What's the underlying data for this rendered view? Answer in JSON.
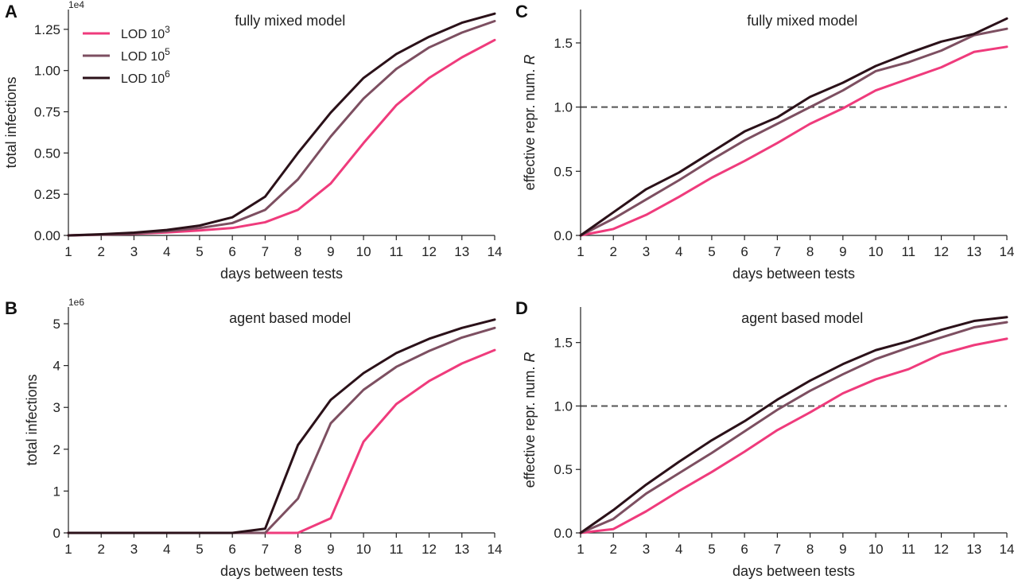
{
  "colors": {
    "lod3": "#ef3b7c",
    "lod5": "#7d4f61",
    "lod6": "#2b1119"
  },
  "legend": [
    {
      "base": "LOD 10",
      "exp": "3",
      "color": "#ef3b7c"
    },
    {
      "base": "LOD 10",
      "exp": "5",
      "color": "#7d4f61"
    },
    {
      "base": "LOD 10",
      "exp": "6",
      "color": "#2b1119"
    }
  ],
  "chart_data": [
    {
      "id": "A",
      "type": "line",
      "letter": "A",
      "title": "fully mixed model",
      "xlabel": "days between tests",
      "ylabel": "total infections",
      "y_multiplier": "1e4",
      "x": [
        1,
        2,
        3,
        4,
        5,
        6,
        7,
        8,
        9,
        10,
        11,
        12,
        13,
        14
      ],
      "xlim": [
        1,
        14
      ],
      "ylim": [
        0,
        1.37
      ],
      "yticks": [
        0,
        0.25,
        0.5,
        0.75,
        1.0,
        1.25
      ],
      "ytick_labels": [
        "0.00",
        "0.25",
        "0.50",
        "0.75",
        "1.00",
        "1.25"
      ],
      "legend_position": "top-left",
      "grid": false,
      "series": [
        {
          "name": "LOD 10^3",
          "values": [
            0,
            0.005,
            0.01,
            0.018,
            0.03,
            0.045,
            0.08,
            0.155,
            0.315,
            0.56,
            0.79,
            0.955,
            1.08,
            1.185
          ]
        },
        {
          "name": "LOD 10^5",
          "values": [
            0,
            0.005,
            0.012,
            0.025,
            0.045,
            0.075,
            0.155,
            0.34,
            0.6,
            0.83,
            1.01,
            1.14,
            1.23,
            1.3
          ]
        },
        {
          "name": "LOD 10^6",
          "values": [
            0,
            0.007,
            0.017,
            0.033,
            0.06,
            0.11,
            0.235,
            0.5,
            0.745,
            0.955,
            1.1,
            1.205,
            1.29,
            1.345
          ]
        }
      ]
    },
    {
      "id": "B",
      "type": "line",
      "letter": "B",
      "title": "agent based model",
      "xlabel": "days between tests",
      "ylabel": "total infections",
      "y_multiplier": "1e6",
      "x": [
        1,
        2,
        3,
        4,
        5,
        6,
        7,
        8,
        9,
        10,
        11,
        12,
        13,
        14
      ],
      "xlim": [
        1,
        14
      ],
      "ylim": [
        0,
        5.4
      ],
      "yticks": [
        0,
        1,
        2,
        3,
        4,
        5
      ],
      "ytick_labels": [
        "0",
        "1",
        "2",
        "3",
        "4",
        "5"
      ],
      "grid": false,
      "series": [
        {
          "name": "LOD 10^3",
          "values": [
            0,
            0,
            0,
            0,
            0,
            0,
            0,
            0,
            0.35,
            2.18,
            3.08,
            3.63,
            4.05,
            4.37
          ]
        },
        {
          "name": "LOD 10^5",
          "values": [
            0,
            0,
            0,
            0,
            0,
            0,
            0,
            0.82,
            2.62,
            3.42,
            3.97,
            4.35,
            4.67,
            4.9
          ]
        },
        {
          "name": "LOD 10^6",
          "values": [
            0,
            0,
            0,
            0,
            0,
            0,
            0.1,
            2.1,
            3.18,
            3.82,
            4.3,
            4.64,
            4.9,
            5.1
          ]
        }
      ]
    },
    {
      "id": "C",
      "type": "line",
      "letter": "C",
      "title": "fully mixed model",
      "xlabel": "days between tests",
      "ylabel_plain": "effective repr. num. ",
      "ylabel_italic": "R",
      "x": [
        1,
        2,
        3,
        4,
        5,
        6,
        7,
        8,
        9,
        10,
        11,
        12,
        13,
        14
      ],
      "xlim": [
        1,
        14
      ],
      "ylim": [
        0,
        1.76
      ],
      "yticks": [
        0,
        0.5,
        1.0,
        1.5
      ],
      "ytick_labels": [
        "0.0",
        "0.5",
        "1.0",
        "1.5"
      ],
      "reference_line": 1.0,
      "grid": false,
      "series": [
        {
          "name": "LOD 10^3",
          "values": [
            0,
            0.05,
            0.16,
            0.3,
            0.45,
            0.58,
            0.72,
            0.87,
            0.99,
            1.13,
            1.22,
            1.31,
            1.43,
            1.47
          ]
        },
        {
          "name": "LOD 10^5",
          "values": [
            0,
            0.13,
            0.28,
            0.43,
            0.59,
            0.74,
            0.87,
            1.0,
            1.13,
            1.28,
            1.35,
            1.44,
            1.56,
            1.61
          ]
        },
        {
          "name": "LOD 10^6",
          "values": [
            0,
            0.18,
            0.36,
            0.49,
            0.65,
            0.81,
            0.92,
            1.08,
            1.19,
            1.32,
            1.42,
            1.51,
            1.57,
            1.69
          ]
        }
      ]
    },
    {
      "id": "D",
      "type": "line",
      "letter": "D",
      "title": "agent based model",
      "xlabel": "days between tests",
      "ylabel_plain": "effective repr. num. ",
      "ylabel_italic": "R",
      "x": [
        1,
        2,
        3,
        4,
        5,
        6,
        7,
        8,
        9,
        10,
        11,
        12,
        13,
        14
      ],
      "xlim": [
        1,
        14
      ],
      "ylim": [
        0,
        1.78
      ],
      "yticks": [
        0,
        0.5,
        1.0,
        1.5
      ],
      "ytick_labels": [
        "0.0",
        "0.5",
        "1.0",
        "1.5"
      ],
      "reference_line": 1.0,
      "grid": false,
      "series": [
        {
          "name": "LOD 10^3",
          "values": [
            0,
            0.03,
            0.17,
            0.33,
            0.48,
            0.64,
            0.81,
            0.95,
            1.1,
            1.21,
            1.29,
            1.41,
            1.48,
            1.53
          ]
        },
        {
          "name": "LOD 10^5",
          "values": [
            0,
            0.11,
            0.31,
            0.47,
            0.63,
            0.8,
            0.97,
            1.12,
            1.25,
            1.37,
            1.46,
            1.54,
            1.62,
            1.66
          ]
        },
        {
          "name": "LOD 10^6",
          "values": [
            0,
            0.18,
            0.38,
            0.56,
            0.73,
            0.88,
            1.05,
            1.2,
            1.33,
            1.44,
            1.51,
            1.6,
            1.67,
            1.7
          ]
        }
      ]
    }
  ]
}
